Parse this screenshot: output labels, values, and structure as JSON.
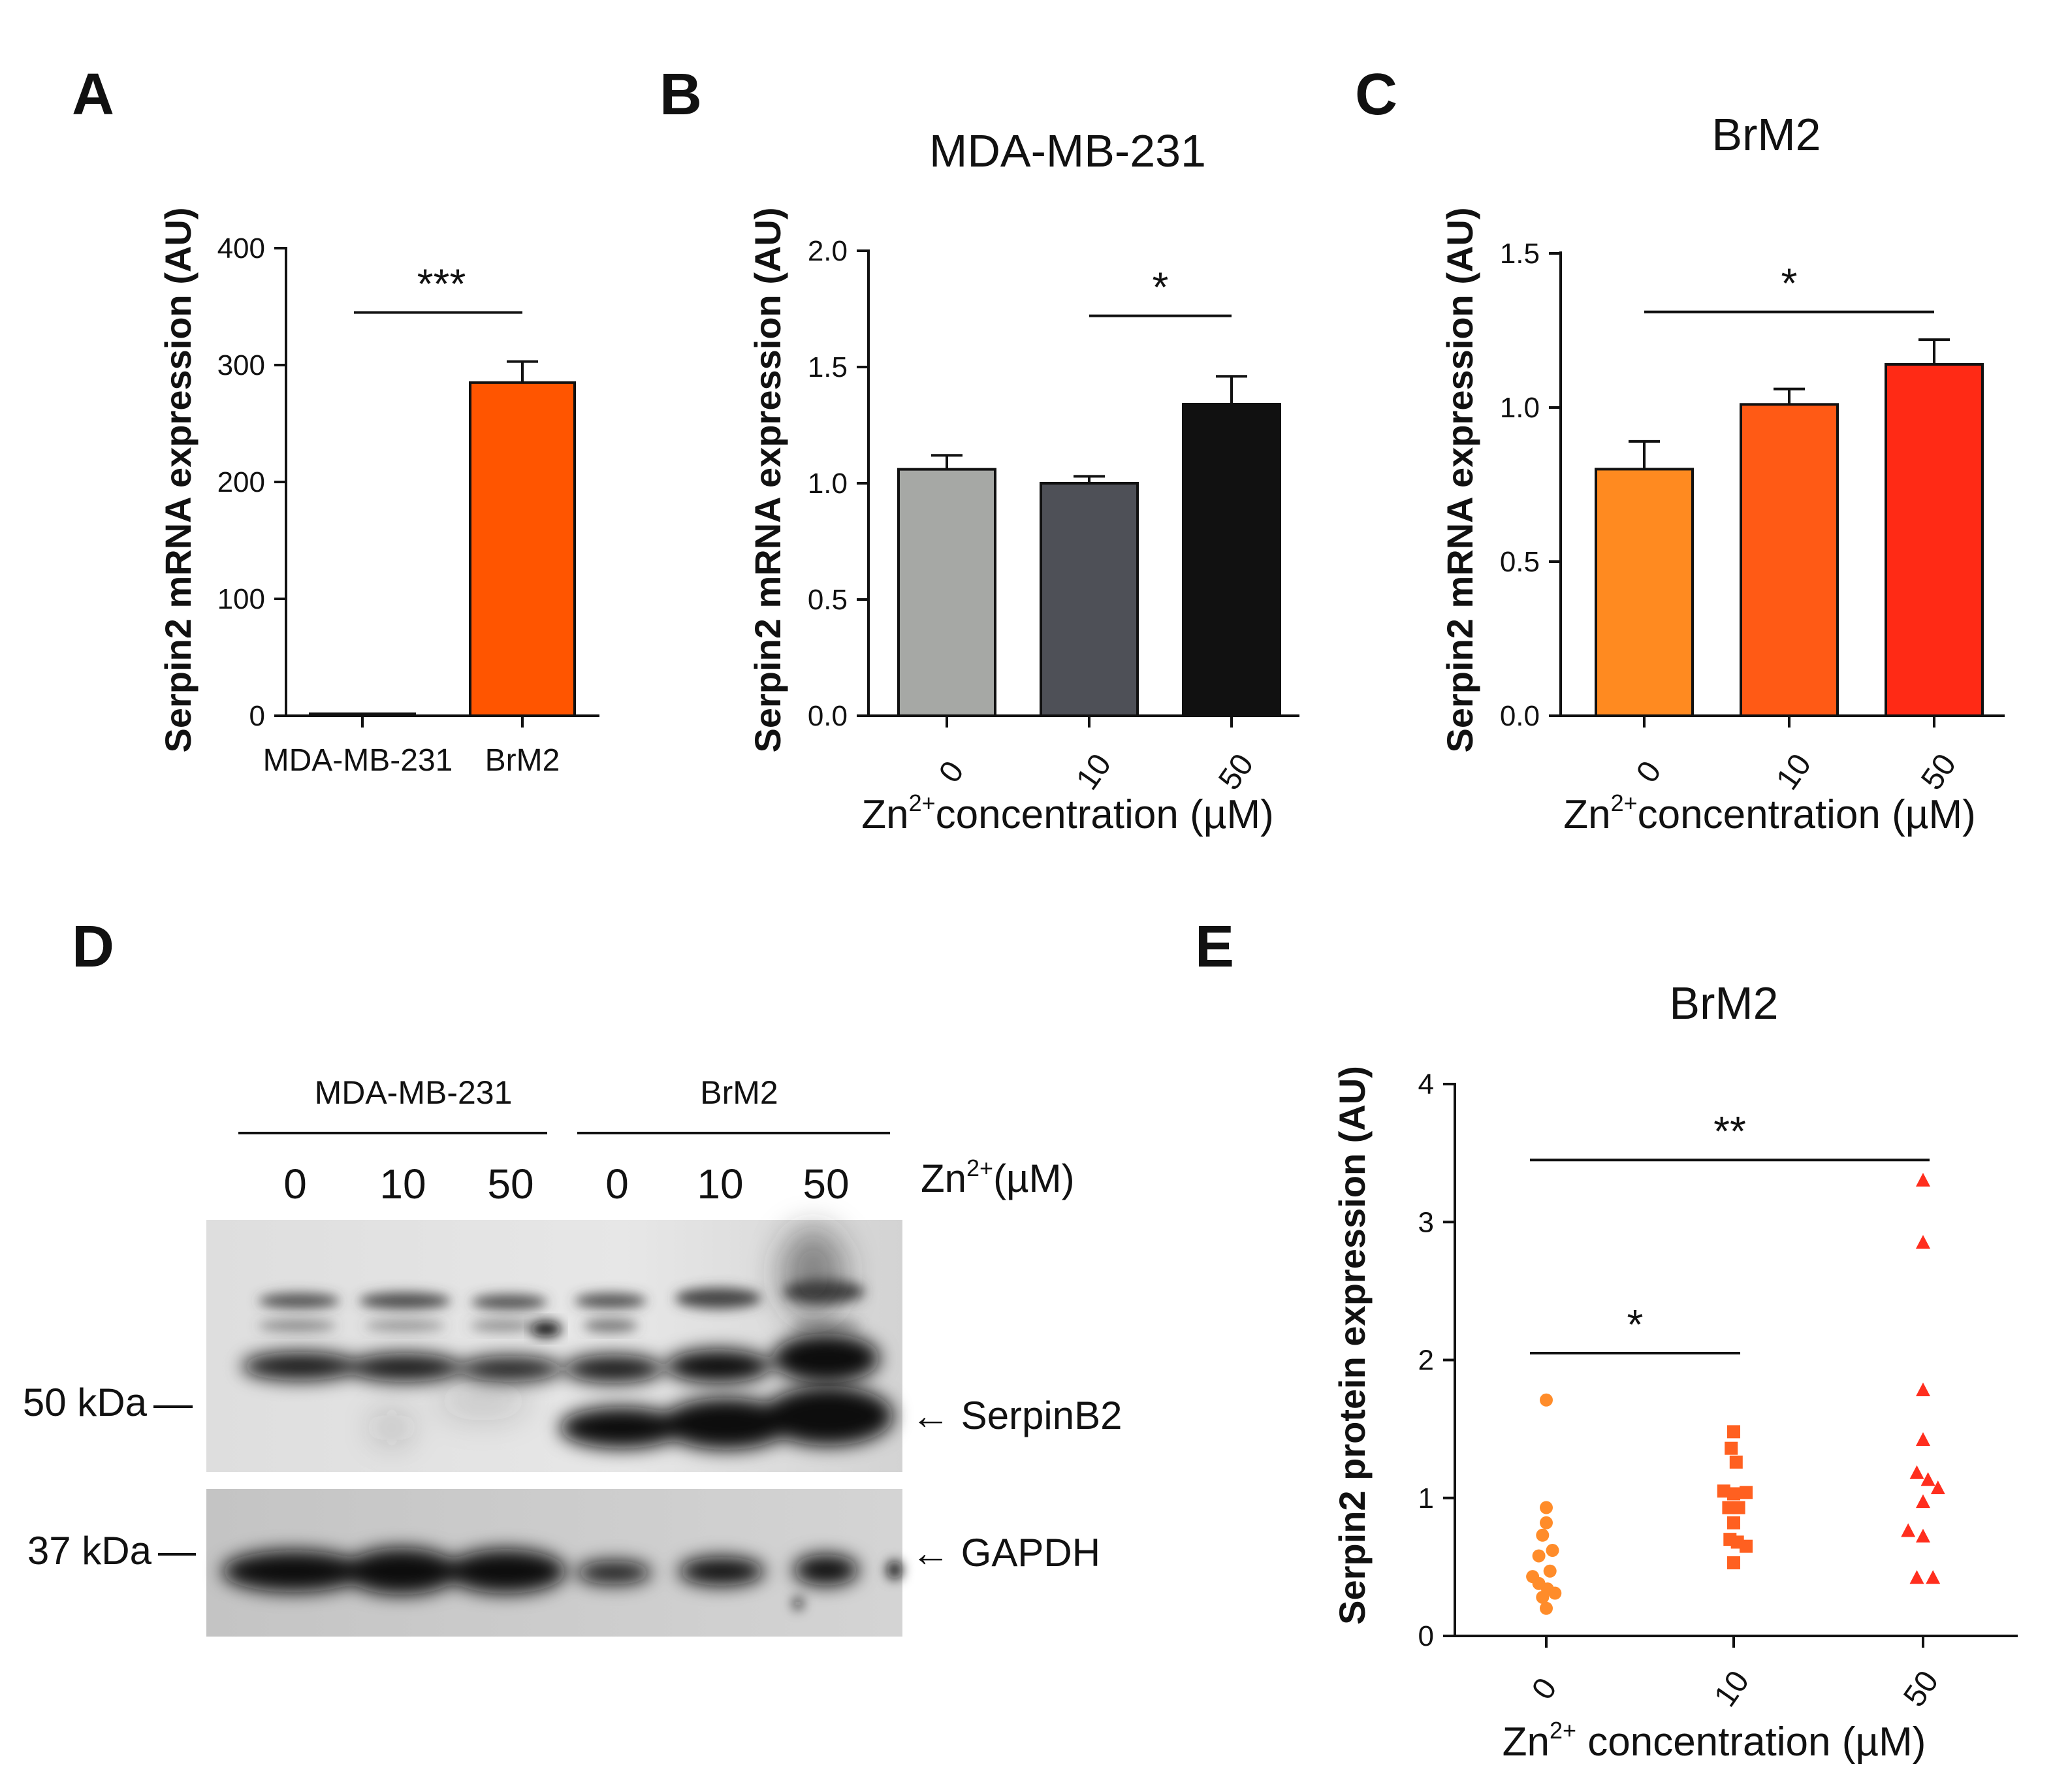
{
  "colors": {
    "A_mda": "#888888",
    "A_brm2": "#ff5500",
    "B_0": "#a6a8a5",
    "B_10": "#4e5057",
    "B_50": "#111111",
    "C_0": "#ff8a20",
    "C_10": "#ff5a15",
    "C_50": "#ff2a15",
    "E_0": "#ff8c2a",
    "E_10": "#ff6020",
    "E_50": "#ff2e1e"
  },
  "panels": {
    "A": {
      "label": "A"
    },
    "B": {
      "label": "B"
    },
    "C": {
      "label": "C"
    },
    "D": {
      "label": "D"
    },
    "E": {
      "label": "E"
    }
  },
  "chart_data": [
    {
      "id": "A",
      "type": "bar",
      "title": "",
      "ylabel": "Serpin2 mRNA expression (AU)",
      "xlabel": "",
      "categories": [
        "MDA-MB-231",
        "BrM2"
      ],
      "values": [
        1,
        285
      ],
      "errors": [
        0,
        18
      ],
      "ylim": [
        0,
        400
      ],
      "yticks": [
        0,
        100,
        200,
        300,
        400
      ],
      "ytick_labels": [
        "0",
        "100",
        "200",
        "300",
        "400"
      ],
      "significance": [
        {
          "from": 0,
          "to": 1,
          "label": "***",
          "y": 345
        }
      ]
    },
    {
      "id": "B",
      "type": "bar",
      "title": "MDA-MB-231",
      "ylabel": "Serpin2 mRNA expression (AU)",
      "xlabel_main": "Zn",
      "xlabel_sup": "2+",
      "xlabel_rest": "concentration (µM)",
      "categories": [
        "0",
        "10",
        "50"
      ],
      "values": [
        1.06,
        1.0,
        1.34
      ],
      "errors": [
        0.06,
        0.03,
        0.12
      ],
      "ylim": [
        0,
        2.0
      ],
      "yticks": [
        0,
        0.5,
        1.0,
        1.5,
        2.0
      ],
      "ytick_labels": [
        "0.0",
        "0.5",
        "1.0",
        "1.5",
        "2.0"
      ],
      "significance": [
        {
          "from": 1,
          "to": 2,
          "label": "*",
          "y": 1.72
        }
      ]
    },
    {
      "id": "C",
      "type": "bar",
      "title": "BrM2",
      "ylabel": "Serpin2 mRNA expression (AU)",
      "xlabel_main": "Zn",
      "xlabel_sup": "2+",
      "xlabel_rest": "concentration (µM)",
      "categories": [
        "0",
        "10",
        "50"
      ],
      "values": [
        0.8,
        1.01,
        1.14
      ],
      "errors": [
        0.09,
        0.05,
        0.08
      ],
      "ylim": [
        0,
        1.5
      ],
      "yticks": [
        0,
        0.5,
        1.0,
        1.5
      ],
      "ytick_labels": [
        "0.0",
        "0.5",
        "1.0",
        "1.5"
      ],
      "significance": [
        {
          "from": 0,
          "to": 2,
          "label": "*",
          "y": 1.31
        }
      ]
    },
    {
      "id": "E",
      "type": "scatter",
      "title": "BrM2",
      "ylabel": "Serpin2 protein expression (AU)",
      "xlabel_main": "Zn",
      "xlabel_sup": "2+",
      "xlabel_rest": " concentration (µM)",
      "categories": [
        "0",
        "10",
        "50"
      ],
      "ylim": [
        0,
        4
      ],
      "yticks": [
        0,
        1,
        2,
        3,
        4
      ],
      "ytick_labels": [
        "0",
        "1",
        "2",
        "3",
        "4"
      ],
      "series": [
        {
          "name": "0",
          "marker": "circle",
          "points": [
            [
              0.0,
              1.71
            ],
            [
              0.0,
              0.93
            ],
            [
              0.0,
              0.82
            ],
            [
              -0.03,
              0.73
            ],
            [
              0.05,
              0.62
            ],
            [
              -0.06,
              0.58
            ],
            [
              0.03,
              0.47
            ],
            [
              -0.11,
              0.43
            ],
            [
              -0.06,
              0.38
            ],
            [
              0.01,
              0.34
            ],
            [
              0.07,
              0.31
            ],
            [
              -0.03,
              0.28
            ],
            [
              0.0,
              0.2
            ]
          ]
        },
        {
          "name": "10",
          "marker": "square",
          "points": [
            [
              0.0,
              1.48
            ],
            [
              -0.02,
              1.36
            ],
            [
              0.02,
              1.26
            ],
            [
              -0.08,
              1.05
            ],
            [
              0.0,
              1.03
            ],
            [
              0.1,
              1.04
            ],
            [
              -0.04,
              0.93
            ],
            [
              0.04,
              0.93
            ],
            [
              0.0,
              0.82
            ],
            [
              -0.03,
              0.7
            ],
            [
              0.03,
              0.68
            ],
            [
              0.1,
              0.65
            ],
            [
              0.0,
              0.53
            ]
          ]
        },
        {
          "name": "50",
          "marker": "triangle",
          "points": [
            [
              0.0,
              3.3
            ],
            [
              0.0,
              2.85
            ],
            [
              0.0,
              1.78
            ],
            [
              0.0,
              1.42
            ],
            [
              -0.05,
              1.18
            ],
            [
              0.04,
              1.13
            ],
            [
              0.12,
              1.07
            ],
            [
              0.0,
              0.97
            ],
            [
              -0.12,
              0.76
            ],
            [
              0.0,
              0.72
            ],
            [
              -0.05,
              0.42
            ],
            [
              0.08,
              0.42
            ]
          ]
        }
      ],
      "significance": [
        {
          "from": 0,
          "to": 2,
          "label": "**",
          "y": 3.45
        },
        {
          "from": 0,
          "to": 1,
          "label": "*",
          "y": 2.05
        }
      ]
    }
  ],
  "blot": {
    "groups": [
      "MDA-MB-231",
      "BrM2"
    ],
    "lanes": [
      "0",
      "10",
      "50",
      "0",
      "10",
      "50"
    ],
    "treatment_main": "Zn",
    "treatment_sup": "2+",
    "treatment_rest": "(µM)",
    "markers": [
      "50 kDa",
      "37 kDa"
    ],
    "bands": [
      "← SerpinB2",
      "← GAPDH"
    ]
  }
}
